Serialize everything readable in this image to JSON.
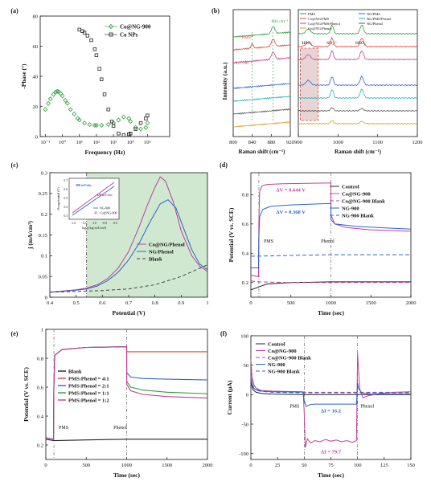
{
  "colors": {
    "black": "#222222",
    "green": "#2e9e3e",
    "magenta": "#c0409a",
    "blue": "#2f63c8",
    "red": "#e0453a",
    "gray": "#888888",
    "shade_green": "#cfe8cf"
  },
  "chart_data": [
    {
      "id": "a",
      "panel_label": "(a)",
      "type": "scatter",
      "xlabel": "Frequency (Hz)",
      "ylabel": "-Phase (°)",
      "xscale": "log",
      "xlim": [
        0.05,
        2000000
      ],
      "ylim": [
        0,
        80
      ],
      "xticks": [
        0.1,
        1,
        10,
        100,
        1000,
        10000,
        100000
      ],
      "xtick_labels": [
        "10⁻¹",
        "10⁰",
        "10¹",
        "10²",
        "10³",
        "10⁴",
        "10⁵"
      ],
      "yticks": [
        0,
        20,
        40,
        60,
        80
      ],
      "legend_position": "top-right",
      "series": [
        {
          "name": "Co@NG-900",
          "color": "#2e9e3e",
          "marker": "diamond",
          "x": [
            0.1,
            0.15,
            0.2,
            0.3,
            0.4,
            0.5,
            0.6,
            0.8,
            1,
            1.5,
            2,
            3,
            5,
            8,
            10,
            20,
            40,
            80,
            100,
            200,
            500,
            1000,
            2000,
            4000,
            8000,
            10000,
            20000,
            40000,
            80000,
            100000
          ],
          "y": [
            18,
            22,
            25,
            28,
            29.5,
            30,
            29.8,
            28.5,
            27,
            24,
            22,
            18,
            15,
            12,
            11,
            9,
            8,
            7.5,
            7.5,
            7.5,
            8,
            9,
            11,
            13,
            12,
            10,
            6,
            5,
            6,
            9
          ]
        },
        {
          "name": "Co NPs",
          "color": "#222222",
          "marker": "square",
          "x": [
            10,
            15,
            20,
            30,
            50,
            80,
            100,
            150,
            200,
            300,
            500,
            800,
            1000,
            2000,
            4000,
            8000,
            10000,
            20000,
            40000,
            80000,
            100000
          ],
          "y": [
            71,
            70,
            69,
            67,
            64,
            58,
            54,
            45,
            38,
            28,
            18,
            10,
            7,
            2,
            1,
            1.5,
            2,
            5,
            9,
            12,
            14
          ]
        }
      ]
    },
    {
      "id": "b",
      "panel_label": "(b)",
      "type": "line",
      "xlabel_left": "Raman shift (cm⁻¹)",
      "xlabel_right": "Raman shift (cm⁻¹)",
      "ylabel": "Intensity (a.u.)",
      "xlim_left": [
        800,
        920
      ],
      "xlim_right": [
        900,
        1200
      ],
      "xticks_left": [
        800,
        840,
        880,
        920
      ],
      "xticks_right": [
        900,
        1000,
        1100,
        1200
      ],
      "annotations": [
        "884 cm⁻¹",
        "PMS*",
        "827 cm⁻¹",
        "HSO₅⁻",
        "SO₄²⁻",
        "HSO₄⁻"
      ],
      "legend_position": "top",
      "series": [
        {
          "name": "PMS",
          "color": "#2e9e3e",
          "offset": 7
        },
        {
          "name": "Co@NG/PMS",
          "color": "#e0453a",
          "offset": 6
        },
        {
          "name": "Co@NG/PMS/Phenol",
          "color": "#c0409a",
          "offset": 5
        },
        {
          "name": "Co@NG/Phenol",
          "color": "#d4a020",
          "offset": 0
        },
        {
          "name": "NG/PMS",
          "color": "#2f63c8",
          "offset": 3
        },
        {
          "name": "NG/PMS/Phenol",
          "color": "#20b0c0",
          "offset": 2
        },
        {
          "name": "NG/Phenol",
          "color": "#555555",
          "offset": 1
        }
      ]
    },
    {
      "id": "c",
      "panel_label": "(c)",
      "type": "line",
      "xlabel": "Potential (V)",
      "ylabel": "j (mA/cm²)",
      "xlim": [
        0.4,
        1.0
      ],
      "ylim": [
        0,
        0.3
      ],
      "xticks": [
        0.4,
        0.5,
        0.6,
        0.7,
        0.8,
        0.9,
        1.0
      ],
      "xtick_labels": [
        "0.4",
        "0.5",
        "0.6",
        "0.7",
        "0.8",
        "0.9",
        "1"
      ],
      "yticks": [
        0,
        0.05,
        0.1,
        0.15,
        0.2,
        0.25,
        0.3
      ],
      "ytick_labels": [
        "0",
        "0.05",
        "0.1",
        "0.15",
        "0.2",
        "0.25",
        "0.3"
      ],
      "shaded_from_x": 0.54,
      "legend_position": "bottom-right",
      "series": [
        {
          "name": "Co@NG/Phenol",
          "color": "#c0409a",
          "dash": "",
          "x": [
            0.4,
            0.45,
            0.5,
            0.54,
            0.58,
            0.62,
            0.66,
            0.7,
            0.74,
            0.77,
            0.8,
            0.82,
            0.84,
            0.87,
            0.9,
            0.94,
            0.97,
            1.0
          ],
          "y": [
            0.012,
            0.015,
            0.018,
            0.022,
            0.03,
            0.045,
            0.07,
            0.11,
            0.17,
            0.22,
            0.265,
            0.29,
            0.28,
            0.23,
            0.16,
            0.1,
            0.075,
            0.062
          ]
        },
        {
          "name": "NG/Phenol",
          "color": "#2f63c8",
          "dash": "",
          "x": [
            0.4,
            0.45,
            0.5,
            0.54,
            0.58,
            0.62,
            0.66,
            0.7,
            0.74,
            0.78,
            0.82,
            0.85,
            0.88,
            0.91,
            0.94,
            0.97,
            1.0
          ],
          "y": [
            0.012,
            0.014,
            0.017,
            0.02,
            0.027,
            0.04,
            0.06,
            0.09,
            0.13,
            0.18,
            0.225,
            0.235,
            0.215,
            0.165,
            0.115,
            0.08,
            0.066
          ]
        },
        {
          "name": "Blank",
          "color": "#444444",
          "dash": "4,3",
          "x": [
            0.4,
            0.5,
            0.6,
            0.7,
            0.8,
            0.9,
            1.0
          ],
          "y": [
            0.012,
            0.014,
            0.016,
            0.02,
            0.03,
            0.05,
            0.078
          ]
        }
      ],
      "inset": {
        "xlabel": "log j (log mA/cm²)",
        "ylabel": "Overpotential (V)",
        "xticks": [
          "-1.4",
          "-1.2",
          "-1.0",
          "-0.8",
          "-0.6"
        ],
        "yticks": [
          "0.3",
          "0.4",
          "0.5",
          "0.6",
          "0.7"
        ],
        "annotations": [
          "380 mV/dec",
          "320 mV/dec"
        ],
        "legend": [
          "NG-900",
          "Co@NG-900"
        ]
      }
    },
    {
      "id": "d",
      "panel_label": "(d)",
      "type": "line",
      "xlabel": "Time (sec)",
      "ylabel": "Potential (V vs. SCE)",
      "xlim": [
        0,
        2000
      ],
      "ylim": [
        0.1,
        0.95
      ],
      "xticks": [
        0,
        500,
        1000,
        1500,
        2000
      ],
      "yticks": [
        0.2,
        0.4,
        0.6,
        0.8
      ],
      "events": [
        {
          "x": 100,
          "label": "PMS"
        },
        {
          "x": 1000,
          "label": "Phenol"
        }
      ],
      "annotations": [
        "ΔV = 0.644 V",
        "ΔV = 0.368 V"
      ],
      "legend_position": "right",
      "series": [
        {
          "name": "Control",
          "color": "#222222",
          "dash": "",
          "x": [
            0,
            100,
            200,
            500,
            1000,
            1500,
            2000
          ],
          "y": [
            0.15,
            0.17,
            0.19,
            0.2,
            0.205,
            0.205,
            0.205
          ]
        },
        {
          "name": "Co@NG-900",
          "color": "#c0409a",
          "dash": "",
          "x": [
            0,
            95,
            100,
            110,
            140,
            200,
            400,
            1000,
            1001,
            1050,
            1200,
            1500,
            2000
          ],
          "y": [
            0.25,
            0.24,
            0.6,
            0.82,
            0.86,
            0.87,
            0.875,
            0.88,
            0.66,
            0.6,
            0.575,
            0.56,
            0.55
          ]
        },
        {
          "name": "Co@NG-900 Blank",
          "color": "#c0409a",
          "dash": "5,3",
          "x": [
            0,
            100,
            500,
            1000,
            1500,
            2000
          ],
          "y": [
            0.21,
            0.205,
            0.2,
            0.2,
            0.2,
            0.2
          ]
        },
        {
          "name": "NG-900",
          "color": "#2f63c8",
          "dash": "",
          "x": [
            0,
            95,
            100,
            110,
            150,
            250,
            500,
            1000,
            1001,
            1050,
            1300,
            1600,
            2000
          ],
          "y": [
            0.3,
            0.3,
            0.5,
            0.65,
            0.7,
            0.72,
            0.73,
            0.74,
            0.63,
            0.6,
            0.585,
            0.575,
            0.565
          ]
        },
        {
          "name": "NG-900 Blank",
          "color": "#2f63c8",
          "dash": "5,3",
          "x": [
            0,
            100,
            500,
            1000,
            1500,
            2000
          ],
          "y": [
            0.38,
            0.38,
            0.385,
            0.39,
            0.39,
            0.39
          ]
        }
      ]
    },
    {
      "id": "e",
      "panel_label": "(e)",
      "type": "line",
      "xlabel": "Time (sec)",
      "ylabel": "Potential (V vs. SCE)",
      "xlim": [
        0,
        2000
      ],
      "ylim": [
        0.1,
        1.0
      ],
      "xticks": [
        0,
        500,
        1000,
        1500,
        2000
      ],
      "yticks": [
        0.2,
        0.4,
        0.6,
        0.8,
        1.0
      ],
      "ytick_labels": [
        "0.2",
        "0.4",
        "0.6",
        "0.8",
        "1"
      ],
      "events": [
        {
          "x": 100,
          "label": "PMS"
        },
        {
          "x": 1000,
          "label": "Phenol"
        }
      ],
      "legend_position": "center",
      "series": [
        {
          "name": "Blank",
          "color": "#222222",
          "x": [
            0,
            100,
            500,
            1000,
            1500,
            2000
          ],
          "y": [
            0.24,
            0.23,
            0.235,
            0.24,
            0.24,
            0.24
          ]
        },
        {
          "name": "PMS:Phenol = 4:1",
          "color": "#e0453a",
          "x": [
            0,
            95,
            100,
            110,
            200,
            500,
            1000,
            1001,
            2000
          ],
          "y": [
            0.25,
            0.24,
            0.6,
            0.82,
            0.86,
            0.875,
            0.88,
            0.845,
            0.845
          ]
        },
        {
          "name": "PMS:Phenol = 2:1",
          "color": "#2f63c8",
          "x": [
            0,
            95,
            100,
            110,
            200,
            500,
            1000,
            1001,
            1050,
            1200,
            1500,
            2000
          ],
          "y": [
            0.25,
            0.24,
            0.6,
            0.82,
            0.86,
            0.875,
            0.88,
            0.7,
            0.67,
            0.66,
            0.655,
            0.65
          ]
        },
        {
          "name": "PMS:Phenol = 1:1",
          "color": "#2e9e3e",
          "x": [
            0,
            95,
            100,
            110,
            200,
            500,
            1000,
            1001,
            1050,
            1200,
            1500,
            2000
          ],
          "y": [
            0.25,
            0.24,
            0.6,
            0.82,
            0.86,
            0.875,
            0.88,
            0.64,
            0.6,
            0.58,
            0.565,
            0.555
          ]
        },
        {
          "name": "PMS:Phenol = 1:2",
          "color": "#c0409a",
          "x": [
            0,
            95,
            100,
            110,
            200,
            500,
            1000,
            1001,
            1050,
            1200,
            1500,
            2000
          ],
          "y": [
            0.25,
            0.24,
            0.6,
            0.82,
            0.86,
            0.875,
            0.88,
            0.62,
            0.575,
            0.55,
            0.535,
            0.525
          ]
        }
      ]
    },
    {
      "id": "f",
      "panel_label": "(f)",
      "type": "line",
      "xlabel": "Time (sec)",
      "ylabel": "Current (μA)",
      "xlim": [
        0,
        150
      ],
      "ylim": [
        -110,
        100
      ],
      "xticks": [
        0,
        25,
        50,
        75,
        100,
        125,
        150
      ],
      "yticks": [
        -100,
        -50,
        0,
        50,
        100
      ],
      "events": [
        {
          "x": 50,
          "label": "PMS"
        },
        {
          "x": 100,
          "label": "Phenol"
        }
      ],
      "annotations": [
        "ΔI = 16.2",
        "ΔI = 79.7"
      ],
      "legend_position": "top-left",
      "series": [
        {
          "name": "Control",
          "color": "#222222",
          "dash": "",
          "x": [
            0,
            2,
            5,
            10,
            20,
            50,
            100,
            150
          ],
          "y": [
            20,
            8,
            4,
            2,
            1,
            0,
            0,
            0
          ]
        },
        {
          "name": "Co@NG-900",
          "color": "#c0409a",
          "dash": "",
          "x": [
            0,
            1,
            3,
            6,
            10,
            20,
            30,
            49,
            50,
            51,
            53,
            56,
            60,
            65,
            70,
            75,
            80,
            85,
            90,
            95,
            99,
            100,
            101,
            102,
            105,
            110,
            120,
            135,
            150
          ],
          "y": [
            60,
            30,
            15,
            9,
            7,
            6,
            5.5,
            5,
            -30,
            -90,
            -75,
            -82,
            -78,
            -80,
            -76,
            -79,
            -77,
            -80,
            -78,
            -81,
            -78,
            70,
            40,
            10,
            -5,
            -2,
            2,
            4,
            5
          ]
        },
        {
          "name": "Co@NG-900 Blank",
          "color": "#c0409a",
          "dash": "5,3",
          "x": [
            0,
            3,
            8,
            20,
            50,
            100,
            150
          ],
          "y": [
            40,
            15,
            8,
            5,
            4,
            4,
            4
          ]
        },
        {
          "name": "NG-900",
          "color": "#2f63c8",
          "dash": "",
          "x": [
            0,
            2,
            5,
            10,
            20,
            49,
            50,
            52,
            55,
            60,
            70,
            80,
            90,
            99,
            100,
            101,
            104,
            110,
            120,
            135,
            150
          ],
          "y": [
            30,
            12,
            8,
            6,
            5,
            4.5,
            -10,
            -20,
            -17,
            -16,
            -16,
            -16,
            -16,
            -16,
            20,
            10,
            3,
            1,
            1,
            1,
            1
          ]
        },
        {
          "name": "NG-900 Blank",
          "color": "#2f63c8",
          "dash": "5,3",
          "x": [
            0,
            3,
            8,
            20,
            50,
            100,
            150
          ],
          "y": [
            25,
            10,
            6,
            4,
            3,
            3,
            3
          ]
        }
      ]
    }
  ]
}
